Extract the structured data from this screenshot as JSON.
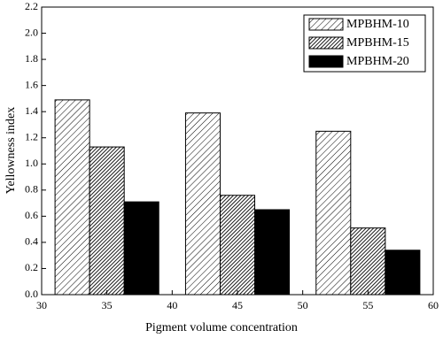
{
  "chart_data": {
    "type": "bar",
    "xlabel": "Pigment volume concentration",
    "ylabel": "Yellowness index",
    "x": [
      35,
      45,
      55
    ],
    "series": [
      {
        "name": "MPBHM-10",
        "color": "#ffffff",
        "pattern": "sparse-hatch",
        "values": [
          1.49,
          1.39,
          1.25
        ]
      },
      {
        "name": "MPBHM-15",
        "color": "#555555",
        "pattern": "dense-hatch",
        "values": [
          1.13,
          0.76,
          0.51
        ]
      },
      {
        "name": "MPBHM-20",
        "color": "#000000",
        "pattern": "solid",
        "values": [
          0.71,
          0.65,
          0.34
        ]
      }
    ],
    "xlim": [
      30,
      60
    ],
    "xticks": [
      30,
      35,
      40,
      45,
      50,
      55,
      60
    ],
    "ylim": [
      0,
      2.2
    ],
    "yticks": [
      {
        "value": 0,
        "label": "0.0"
      },
      0.2,
      0.4,
      0.6,
      0.8,
      {
        "value": 1,
        "label": "1.0"
      },
      1.2,
      1.4,
      1.6,
      1.8,
      {
        "value": 2,
        "label": "2.0"
      },
      2.2
    ],
    "legend": "upper-right"
  }
}
